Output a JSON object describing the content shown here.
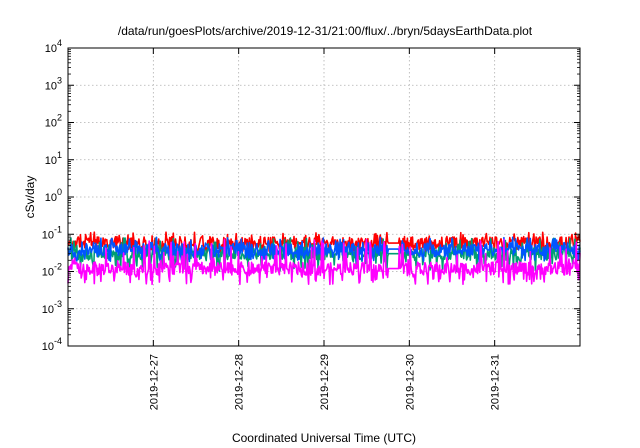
{
  "chart_data": {
    "type": "line",
    "title": "/data/run/goesPlots/archive/2019-12-31/21:00/flux/../bryn/5daysEarthData.plot",
    "xlabel": "Coordinated Universal Time (UTC)",
    "ylabel": "cSv/day",
    "y_scale": "log",
    "ylim": [
      0.0001,
      10000
    ],
    "y_ticks": [
      {
        "value": 0.0001,
        "base": "10",
        "exp": "-4"
      },
      {
        "value": 0.001,
        "base": "10",
        "exp": "-3"
      },
      {
        "value": 0.01,
        "base": "10",
        "exp": "-2"
      },
      {
        "value": 0.1,
        "base": "10",
        "exp": "-1"
      },
      {
        "value": 1,
        "base": "10",
        "exp": "0"
      },
      {
        "value": 10,
        "base": "10",
        "exp": "1"
      },
      {
        "value": 100,
        "base": "10",
        "exp": "2"
      },
      {
        "value": 1000,
        "base": "10",
        "exp": "3"
      },
      {
        "value": 10000,
        "base": "10",
        "exp": "4"
      }
    ],
    "xlim": [
      "2019-12-26 00:00",
      "2020-01-01 00:00"
    ],
    "x_ticks": [
      "2019-12-27",
      "2019-12-28",
      "2019-12-29",
      "2019-12-30",
      "2019-12-31"
    ],
    "grid": true,
    "data_gap": [
      "2019-12-29 18:00",
      "2019-12-29 21:00"
    ],
    "series": [
      {
        "color": "#ff0000",
        "typical": 0.058,
        "min": 0.03,
        "max": 0.115
      },
      {
        "color": "#009e73",
        "typical": 0.03,
        "min": 0.01,
        "max": 0.08
      },
      {
        "color": "#0055ff",
        "typical": 0.04,
        "min": 0.018,
        "max": 0.085
      },
      {
        "color": "#ff00ff",
        "typical": 0.012,
        "min": 0.0045,
        "max": 0.075
      }
    ]
  }
}
